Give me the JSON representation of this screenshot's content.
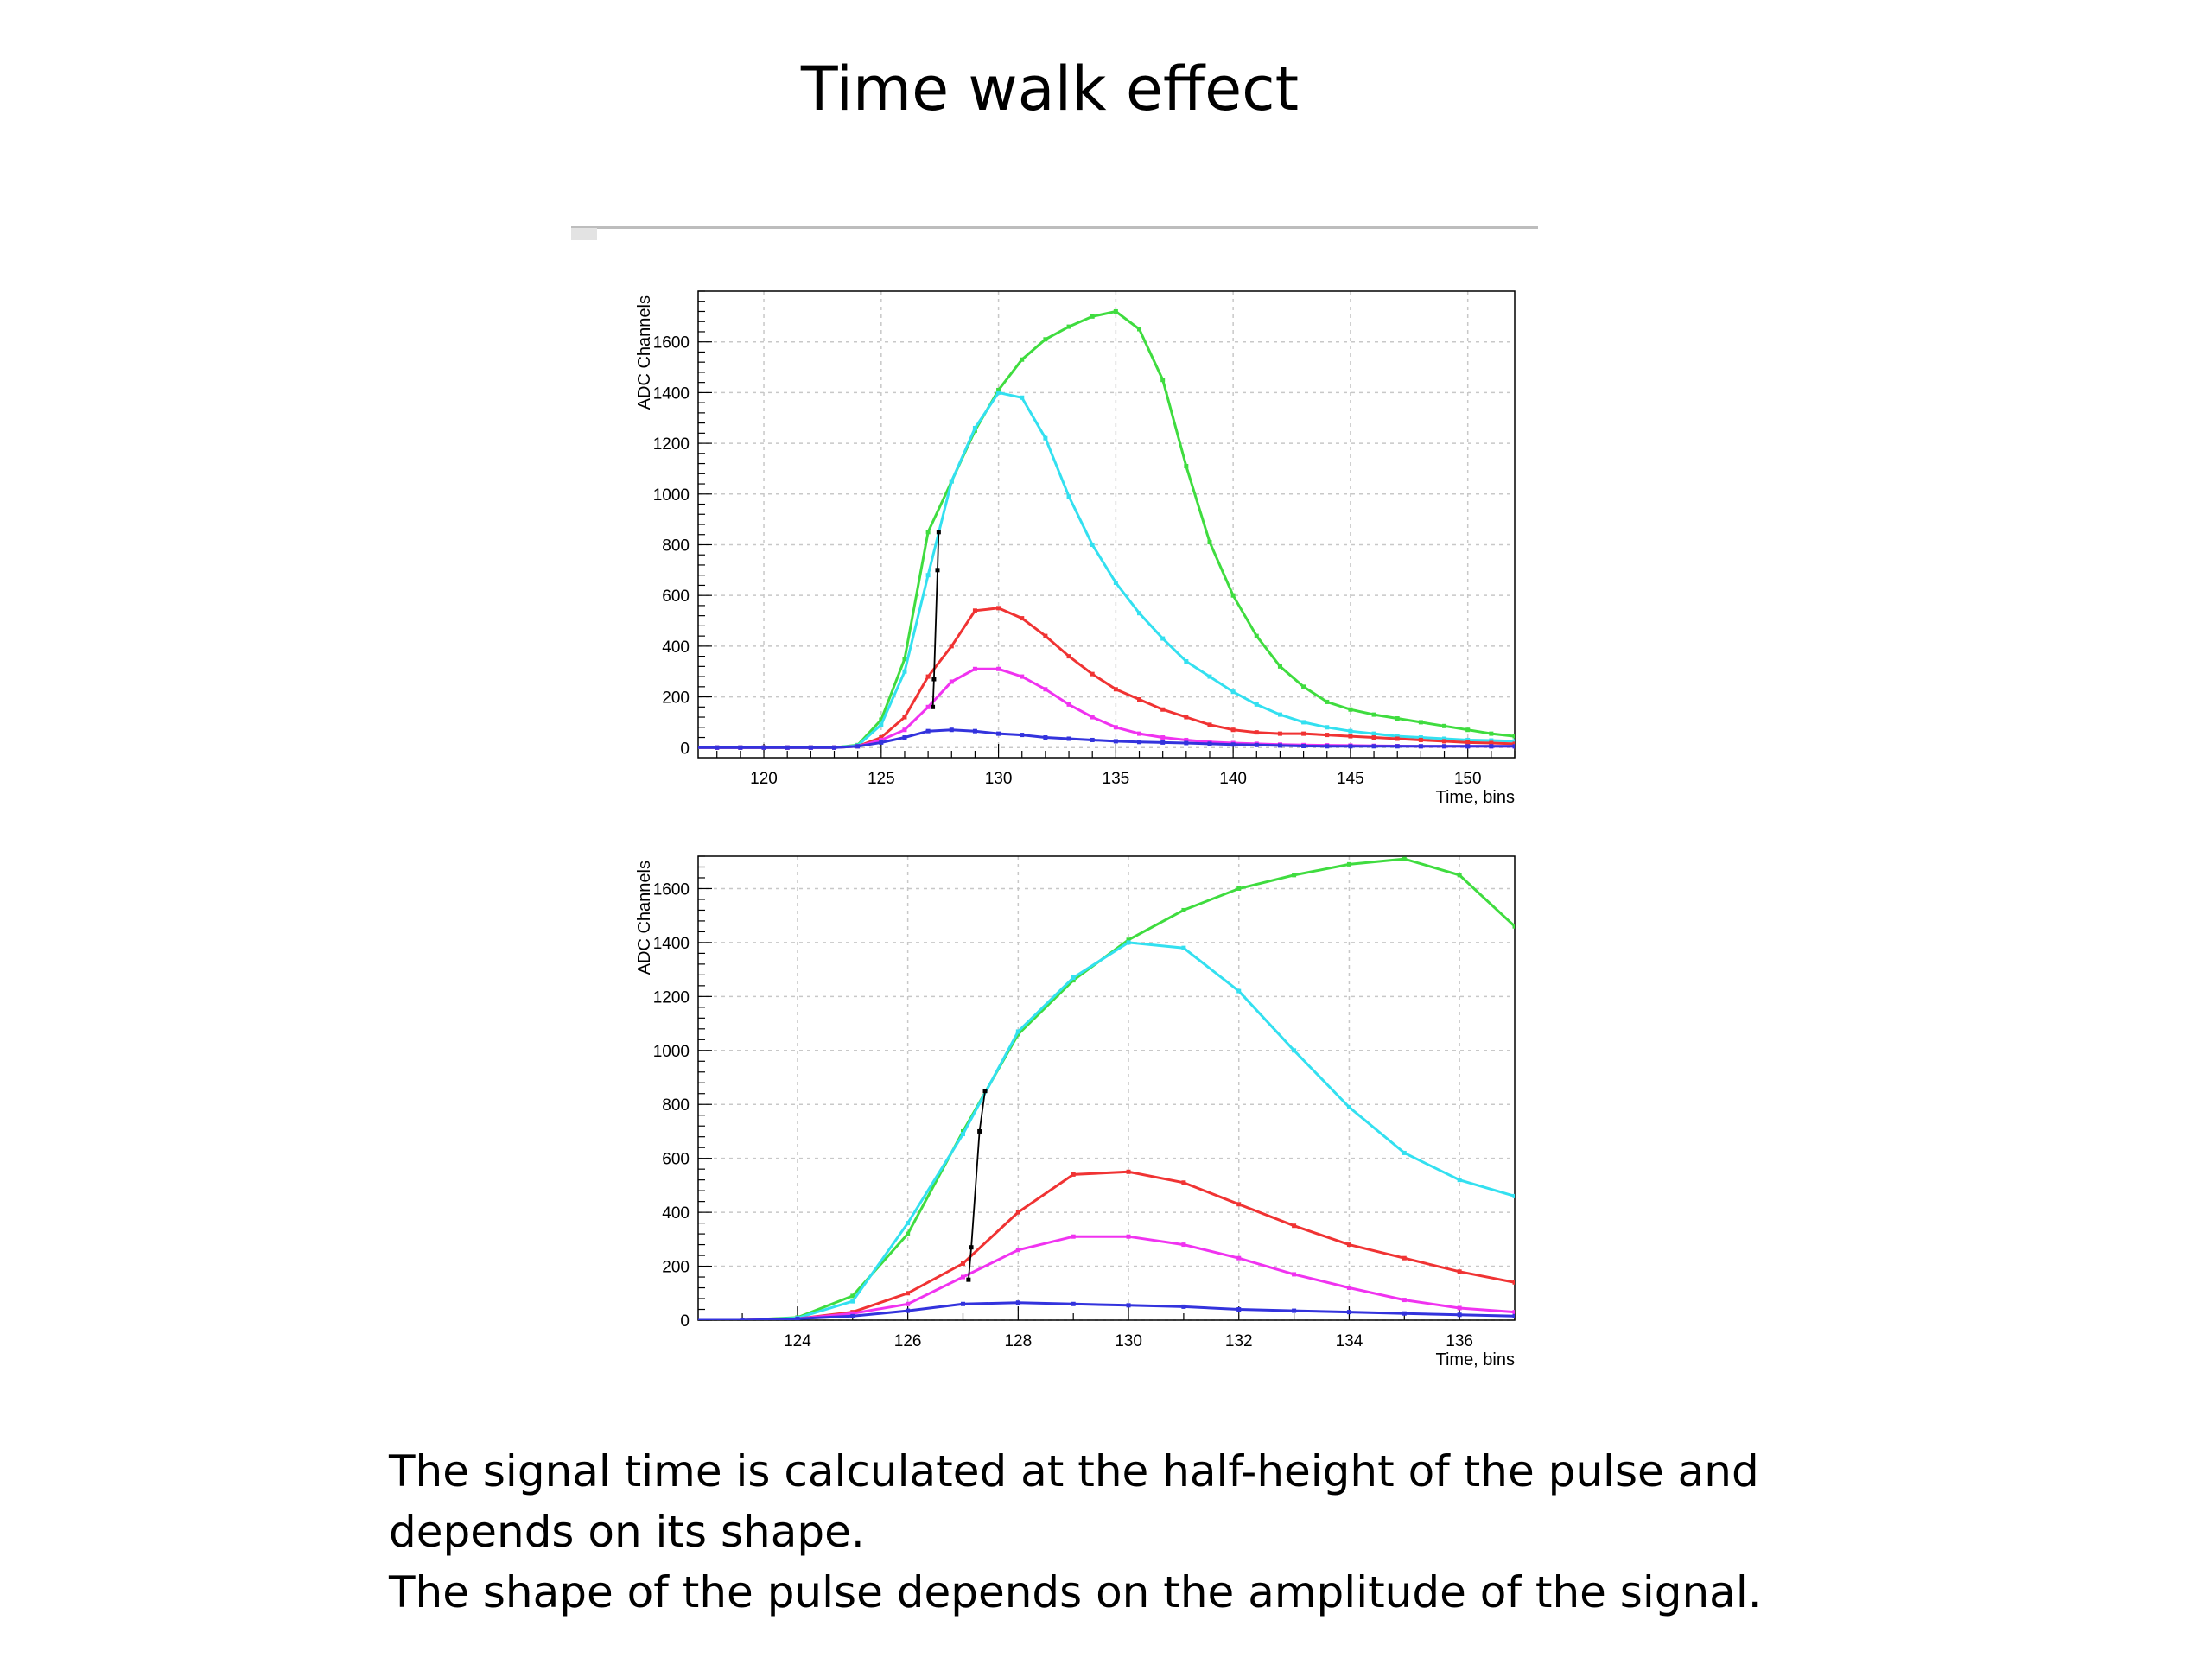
{
  "title": "Time walk effect",
  "caption": {
    "line1": "The signal time is calculated at the half-height of the pulse and",
    "line2": "depends on its shape.",
    "line3": "The shape of the pulse depends on the amplitude of the signal."
  },
  "colors": {
    "green": "#3fdc3f",
    "cyan": "#33e0f0",
    "red": "#f03333",
    "magenta": "#f033f0",
    "blue": "#3333dd",
    "black": "#000000",
    "grid": "#c8c8c8"
  },
  "chart_data": [
    {
      "type": "line",
      "xlabel": "Time, bins",
      "ylabel": "ADC Channels",
      "xlim": [
        117.2,
        152
      ],
      "ylim": [
        -40,
        1800
      ],
      "xticks": [
        120,
        125,
        130,
        135,
        140,
        145,
        150
      ],
      "yticks": [
        0,
        200,
        400,
        600,
        800,
        1000,
        1200,
        1400,
        1600
      ],
      "grid": true,
      "series": [
        {
          "color": "green",
          "x": [
            117,
            118,
            119,
            120,
            121,
            122,
            123,
            124,
            125,
            126,
            127,
            128,
            129,
            130,
            131,
            132,
            133,
            134,
            135,
            136,
            137,
            138,
            139,
            140,
            141,
            142,
            143,
            144,
            145,
            146,
            147,
            148,
            149,
            150,
            151,
            152
          ],
          "y": [
            0,
            0,
            0,
            0,
            0,
            0,
            0,
            10,
            110,
            350,
            850,
            1050,
            1250,
            1410,
            1530,
            1610,
            1660,
            1700,
            1720,
            1650,
            1450,
            1110,
            810,
            600,
            440,
            320,
            240,
            180,
            150,
            130,
            115,
            100,
            85,
            70,
            55,
            45
          ]
        },
        {
          "color": "cyan",
          "x": [
            117,
            118,
            119,
            120,
            121,
            122,
            123,
            124,
            125,
            126,
            127,
            128,
            129,
            130,
            131,
            132,
            133,
            134,
            135,
            136,
            137,
            138,
            139,
            140,
            141,
            142,
            143,
            144,
            145,
            146,
            147,
            148,
            149,
            150,
            151,
            152
          ],
          "y": [
            0,
            0,
            0,
            0,
            0,
            0,
            0,
            8,
            90,
            300,
            680,
            1050,
            1260,
            1400,
            1380,
            1220,
            990,
            800,
            650,
            530,
            430,
            340,
            280,
            220,
            170,
            130,
            100,
            80,
            65,
            55,
            45,
            40,
            35,
            30,
            28,
            25
          ]
        },
        {
          "color": "red",
          "x": [
            117,
            118,
            119,
            120,
            121,
            122,
            123,
            124,
            125,
            126,
            127,
            128,
            129,
            130,
            131,
            132,
            133,
            134,
            135,
            136,
            137,
            138,
            139,
            140,
            141,
            142,
            143,
            144,
            145,
            146,
            147,
            148,
            149,
            150,
            151,
            152
          ],
          "y": [
            0,
            0,
            0,
            0,
            0,
            0,
            0,
            5,
            40,
            120,
            280,
            400,
            540,
            550,
            510,
            440,
            360,
            290,
            230,
            190,
            150,
            120,
            90,
            70,
            60,
            55,
            55,
            50,
            45,
            40,
            35,
            30,
            25,
            20,
            18,
            15
          ]
        },
        {
          "color": "magenta",
          "x": [
            117,
            118,
            119,
            120,
            121,
            122,
            123,
            124,
            125,
            126,
            127,
            128,
            129,
            130,
            131,
            132,
            133,
            134,
            135,
            136,
            137,
            138,
            139,
            140,
            141,
            142,
            143,
            144,
            145,
            146,
            147,
            148,
            149,
            150,
            151,
            152
          ],
          "y": [
            0,
            0,
            0,
            0,
            0,
            0,
            0,
            5,
            30,
            70,
            160,
            260,
            310,
            310,
            280,
            230,
            170,
            120,
            80,
            55,
            40,
            30,
            22,
            18,
            15,
            12,
            10,
            9,
            8,
            7,
            6,
            5,
            5,
            5,
            5,
            5
          ]
        },
        {
          "color": "blue",
          "x": [
            117,
            118,
            119,
            120,
            121,
            122,
            123,
            124,
            125,
            126,
            127,
            128,
            129,
            130,
            131,
            132,
            133,
            134,
            135,
            136,
            137,
            138,
            139,
            140,
            141,
            142,
            143,
            144,
            145,
            146,
            147,
            148,
            149,
            150,
            151,
            152
          ],
          "y": [
            0,
            0,
            0,
            0,
            0,
            0,
            0,
            5,
            20,
            40,
            65,
            70,
            65,
            55,
            50,
            40,
            35,
            30,
            25,
            22,
            20,
            18,
            15,
            12,
            10,
            8,
            6,
            5,
            5,
            5,
            5,
            5,
            5,
            5,
            5,
            5
          ]
        },
        {
          "color": "black",
          "x": [
            127.2,
            127.25,
            127.4,
            127.45
          ],
          "y": [
            160,
            270,
            700,
            850
          ]
        }
      ]
    },
    {
      "type": "line",
      "xlabel": "Time, bins",
      "ylabel": "ADC Channels",
      "xlim": [
        122.2,
        137
      ],
      "ylim": [
        0,
        1720
      ],
      "xticks": [
        124,
        126,
        128,
        130,
        132,
        134,
        136
      ],
      "yticks": [
        0,
        200,
        400,
        600,
        800,
        1000,
        1200,
        1400,
        1600
      ],
      "grid": true,
      "series": [
        {
          "color": "green",
          "x": [
            122,
            123,
            124,
            125,
            126,
            127,
            128,
            129,
            130,
            131,
            132,
            133,
            134,
            135,
            136,
            137
          ],
          "y": [
            0,
            0,
            10,
            90,
            320,
            700,
            1060,
            1260,
            1410,
            1520,
            1600,
            1650,
            1690,
            1710,
            1650,
            1460
          ]
        },
        {
          "color": "cyan",
          "x": [
            122,
            123,
            124,
            125,
            126,
            127,
            128,
            129,
            130,
            131,
            132,
            133,
            134,
            135,
            136,
            137
          ],
          "y": [
            0,
            0,
            8,
            70,
            360,
            690,
            1070,
            1270,
            1400,
            1380,
            1220,
            1000,
            790,
            620,
            520,
            460
          ]
        },
        {
          "color": "red",
          "x": [
            122,
            123,
            124,
            125,
            126,
            127,
            128,
            129,
            130,
            131,
            132,
            133,
            134,
            135,
            136,
            137
          ],
          "y": [
            0,
            0,
            5,
            30,
            100,
            210,
            400,
            540,
            550,
            510,
            430,
            350,
            280,
            230,
            180,
            140
          ]
        },
        {
          "color": "magenta",
          "x": [
            122,
            123,
            124,
            125,
            126,
            127,
            128,
            129,
            130,
            131,
            132,
            133,
            134,
            135,
            136,
            137
          ],
          "y": [
            0,
            0,
            5,
            25,
            60,
            160,
            260,
            310,
            310,
            280,
            230,
            170,
            120,
            75,
            45,
            30
          ]
        },
        {
          "color": "blue",
          "x": [
            122,
            123,
            124,
            125,
            126,
            127,
            128,
            129,
            130,
            131,
            132,
            133,
            134,
            135,
            136,
            137
          ],
          "y": [
            0,
            0,
            5,
            15,
            35,
            60,
            65,
            60,
            55,
            50,
            40,
            35,
            30,
            25,
            20,
            15
          ]
        },
        {
          "color": "black",
          "x": [
            127.1,
            127.15,
            127.3,
            127.4
          ],
          "y": [
            150,
            270,
            700,
            850
          ]
        }
      ]
    }
  ]
}
